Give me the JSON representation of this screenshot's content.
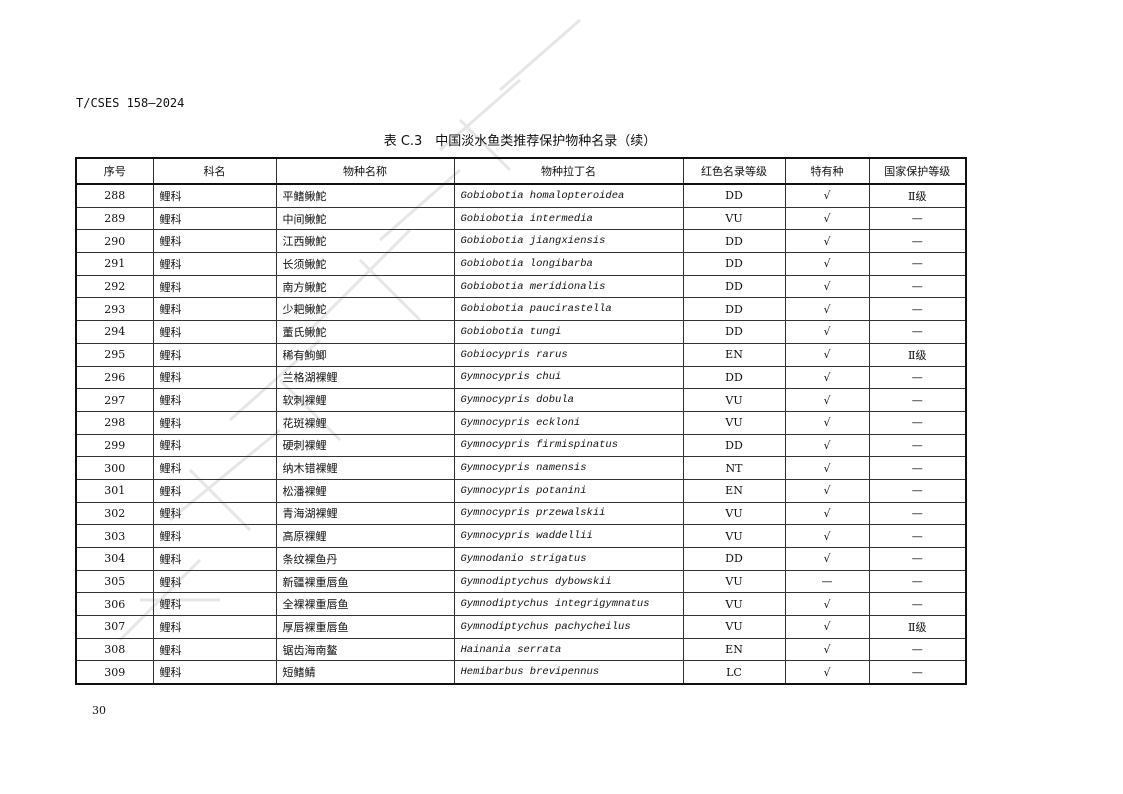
{
  "header": {
    "standard_code": "T/CSES 158—2024"
  },
  "table": {
    "caption": "表 C.3　中国淡水鱼类推荐保护物种名录（续）",
    "columns": [
      "序号",
      "科名",
      "物种名称",
      "物种拉丁名",
      "红色名录等级",
      "特有种",
      "国家保护等级"
    ],
    "rows": [
      [
        "288",
        "鲤科",
        "平鳍鳅鮀",
        "Gobiobotia homalopteroidea",
        "DD",
        "√",
        "Ⅱ级"
      ],
      [
        "289",
        "鲤科",
        "中间鳅鮀",
        "Gobiobotia intermedia",
        "VU",
        "√",
        "—"
      ],
      [
        "290",
        "鲤科",
        "江西鳅鮀",
        "Gobiobotia jiangxiensis",
        "DD",
        "√",
        "—"
      ],
      [
        "291",
        "鲤科",
        "长须鳅鮀",
        "Gobiobotia longibarba",
        "DD",
        "√",
        "—"
      ],
      [
        "292",
        "鲤科",
        "南方鳅鮀",
        "Gobiobotia meridionalis",
        "DD",
        "√",
        "—"
      ],
      [
        "293",
        "鲤科",
        "少耙鳅鮀",
        "Gobiobotia paucirastella",
        "DD",
        "√",
        "—"
      ],
      [
        "294",
        "鲤科",
        "董氏鳅鮀",
        "Gobiobotia tungi",
        "DD",
        "√",
        "—"
      ],
      [
        "295",
        "鲤科",
        "稀有鮈鲫",
        "Gobiocypris rarus",
        "EN",
        "√",
        "Ⅱ级"
      ],
      [
        "296",
        "鲤科",
        "兰格湖裸鲤",
        "Gymnocypris chui",
        "DD",
        "√",
        "—"
      ],
      [
        "297",
        "鲤科",
        "软刺裸鲤",
        "Gymnocypris dobula",
        "VU",
        "√",
        "—"
      ],
      [
        "298",
        "鲤科",
        "花斑裸鲤",
        "Gymnocypris eckloni",
        "VU",
        "√",
        "—"
      ],
      [
        "299",
        "鲤科",
        "硬刺裸鲤",
        "Gymnocypris firmispinatus",
        "DD",
        "√",
        "—"
      ],
      [
        "300",
        "鲤科",
        "纳木错裸鲤",
        "Gymnocypris namensis",
        "NT",
        "√",
        "—"
      ],
      [
        "301",
        "鲤科",
        "松潘裸鲤",
        "Gymnocypris potanini",
        "EN",
        "√",
        "—"
      ],
      [
        "302",
        "鲤科",
        "青海湖裸鲤",
        "Gymnocypris przewalskii",
        "VU",
        "√",
        "—"
      ],
      [
        "303",
        "鲤科",
        "高原裸鲤",
        "Gymnocypris waddellii",
        "VU",
        "√",
        "—"
      ],
      [
        "304",
        "鲤科",
        "条纹裸鱼丹",
        "Gymnodanio strigatus",
        "DD",
        "√",
        "—"
      ],
      [
        "305",
        "鲤科",
        "新疆裸重唇鱼",
        "Gymnodiptychus dybowskii",
        "VU",
        "—",
        "—"
      ],
      [
        "306",
        "鲤科",
        "全裸裸重唇鱼",
        "Gymnodiptychus integrigymnatus",
        "VU",
        "√",
        "—"
      ],
      [
        "307",
        "鲤科",
        "厚唇裸重唇鱼",
        "Gymnodiptychus pachycheilus",
        "VU",
        "√",
        "Ⅱ级"
      ],
      [
        "308",
        "鲤科",
        "锯齿海南鳌",
        "Hainania serrata",
        "EN",
        "√",
        "—"
      ],
      [
        "309",
        "鲤科",
        "短鳍鲭",
        "Hemibarbus brevipennus",
        "LC",
        "√",
        "—"
      ]
    ]
  },
  "footer": {
    "page_number": "30"
  }
}
